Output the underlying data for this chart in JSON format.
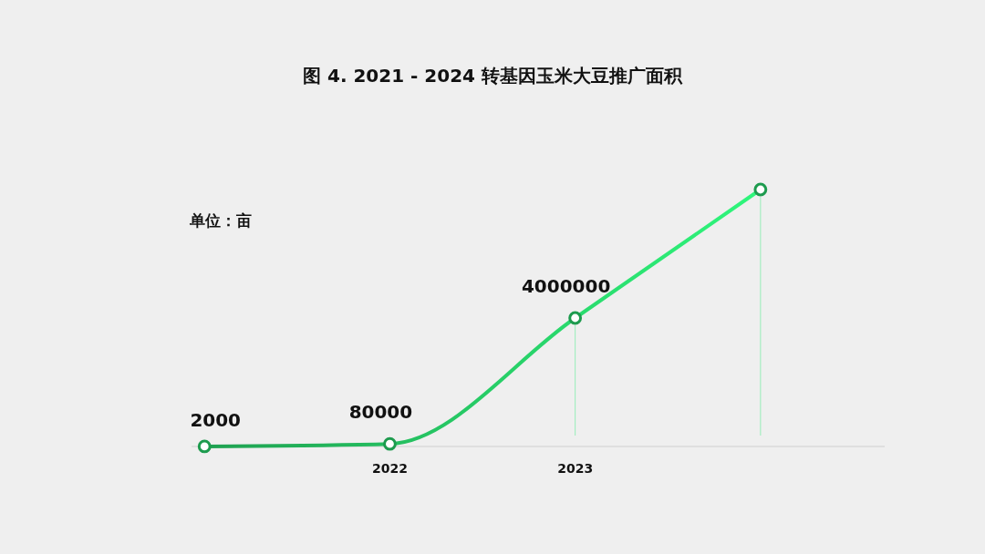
{
  "chart_data": {
    "type": "line",
    "title": "图 4. 2021 - 2024 转基因玉米大豆推广面积",
    "annotations": [
      "单位：亩"
    ],
    "categories": [
      null,
      "2022",
      "2023",
      null
    ],
    "tick_labels": "x",
    "series": [
      {
        "color": "#22b35a",
        "values": [
          2000,
          80000,
          4000000,
          8000000
        ],
        "value_labels": [
          "2000",
          "80000",
          "4000000",
          null
        ]
      }
    ],
    "marker": "circle"
  }
}
